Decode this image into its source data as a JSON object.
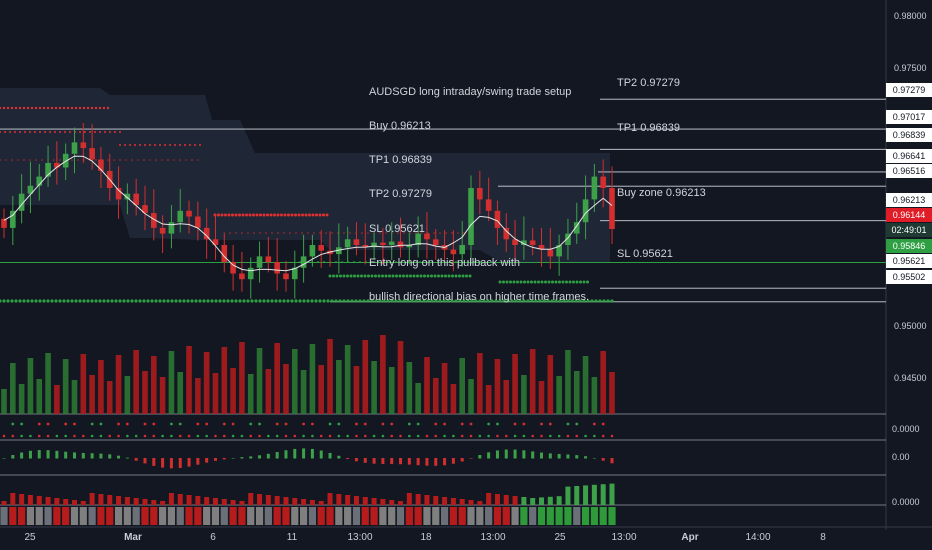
{
  "chart_data": {
    "type": "candlestick",
    "symbol": "AUDSGD",
    "annotation": [
      "AUDSGD long intraday/swing trade setup",
      "Buy 0.96213",
      "TP1 0.96839",
      "TP2 0.97279",
      "SL 0.95621",
      "Entry long on this pullback with",
      "bullish directional bias on higher time frames."
    ],
    "levels": [
      {
        "label": "TP2 0.97279",
        "value": 0.97279
      },
      {
        "label": "TP1 0.96839",
        "value": 0.96839
      },
      {
        "label": "Buy zone 0.96213",
        "value": 0.96213
      },
      {
        "label": "SL 0.95621",
        "value": 0.95621
      }
    ],
    "price_axis": {
      "ticks": [
        "0.98000",
        "0.97500",
        "0.95000",
        "0.94500"
      ],
      "tags": [
        {
          "text": "0.97279",
          "style": "plain",
          "value": 0.97279
        },
        {
          "text": "0.97017",
          "style": "plain",
          "value": 0.97017
        },
        {
          "text": "0.96839",
          "style": "plain",
          "value": 0.96839
        },
        {
          "text": "0.96641",
          "style": "plain",
          "value": 0.96641
        },
        {
          "text": "0.96516",
          "style": "plain",
          "value": 0.96516
        },
        {
          "text": "0.96213",
          "style": "plain",
          "value": 0.96213
        },
        {
          "text": "0.96144",
          "style": "red",
          "value": 0.96144
        },
        {
          "text": "02:49:01",
          "style": "dark",
          "value": 0.9602
        },
        {
          "text": "0.95846",
          "style": "green",
          "value": 0.95846
        },
        {
          "text": "0.95621",
          "style": "plain",
          "value": 0.95621
        },
        {
          "text": "0.95502",
          "style": "plain",
          "value": 0.95502
        }
      ],
      "ylim": [
        0.9452,
        0.9805
      ]
    },
    "indicator_axis": [
      "0.0000",
      "0.00",
      "0.0000"
    ],
    "x_axis": [
      {
        "label": "25",
        "bold": false
      },
      {
        "label": "Mar",
        "bold": true
      },
      {
        "label": "6",
        "bold": false
      },
      {
        "label": "11",
        "bold": false
      },
      {
        "label": "13:00",
        "bold": false
      },
      {
        "label": "18",
        "bold": false
      },
      {
        "label": "13:00",
        "bold": false
      },
      {
        "label": "25",
        "bold": false
      },
      {
        "label": "13:00",
        "bold": false
      },
      {
        "label": "Apr",
        "bold": true
      },
      {
        "label": "14:00",
        "bold": false
      },
      {
        "label": "8",
        "bold": false
      }
    ],
    "colors": {
      "up": "#26a69a",
      "up_fill": "#3da14a",
      "down": "#d32f2f",
      "cloud": "#2a3448",
      "ma": "#e6e6e6",
      "background": "#131722"
    },
    "candle_closes": [
      0.9615,
      0.963,
      0.9645,
      0.9652,
      0.966,
      0.9672,
      0.9668,
      0.968,
      0.969,
      0.9685,
      0.9675,
      0.9665,
      0.965,
      0.964,
      0.9645,
      0.9635,
      0.9628,
      0.9615,
      0.961,
      0.962,
      0.963,
      0.9625,
      0.9615,
      0.9605,
      0.96,
      0.9585,
      0.9575,
      0.957,
      0.958,
      0.959,
      0.9585,
      0.9575,
      0.957,
      0.958,
      0.959,
      0.96,
      0.9595,
      0.9592,
      0.9598,
      0.9605,
      0.96,
      0.9598,
      0.9602,
      0.96,
      0.9603,
      0.9598,
      0.96,
      0.961,
      0.9605,
      0.96,
      0.9596,
      0.9592,
      0.96,
      0.965,
      0.964,
      0.963,
      0.9615,
      0.9605,
      0.96,
      0.9604,
      0.96,
      0.9596,
      0.959,
      0.96,
      0.961,
      0.962,
      0.964,
      0.966,
      0.965,
      0.9614
    ]
  },
  "timer": "02:49:01"
}
